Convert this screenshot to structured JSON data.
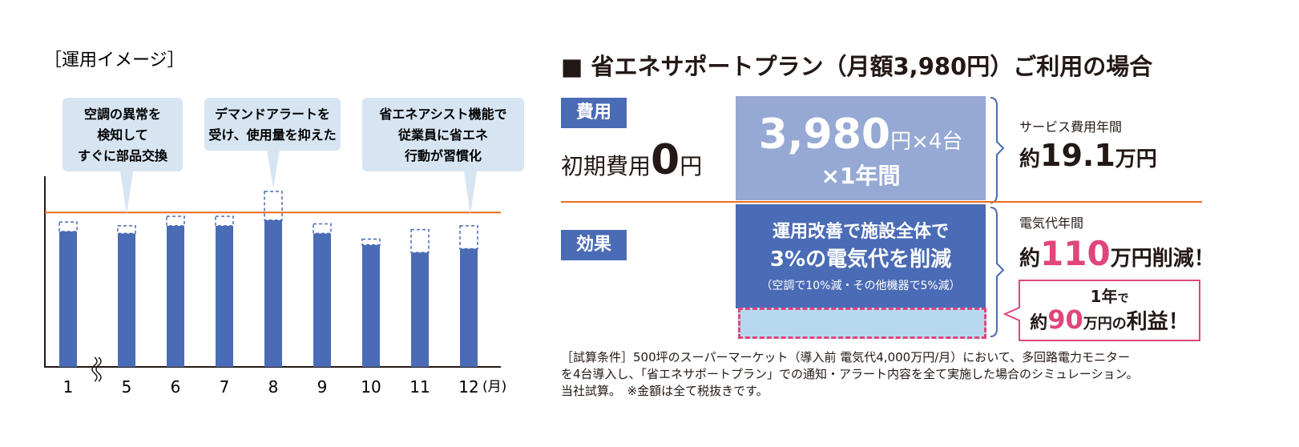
{
  "chart_data": {
    "type": "bar",
    "title": "［運用イメージ］",
    "categories": [
      "1",
      "5",
      "6",
      "7",
      "8",
      "9",
      "10",
      "11",
      "12"
    ],
    "x_unit": "(月)",
    "series": [
      {
        "color": "#4a6bb5",
        "values": [
          71,
          70,
          74,
          74,
          77,
          70,
          64,
          60,
          62
        ]
      },
      {
        "color": "#4a6bb5",
        "style": "dashed",
        "values": [
          5,
          4,
          5,
          5,
          15,
          5,
          3,
          12,
          12
        ]
      }
    ],
    "reference_line": {
      "value": 81,
      "color": "#ec6c1f"
    },
    "ylim": [
      0,
      100
    ],
    "annotations": [
      {
        "lines": [
          "空調の異常を",
          "検知して",
          "すぐに部品交換"
        ]
      },
      {
        "lines": [
          "デマンドアラートを",
          "受け、使用量を抑えた"
        ]
      },
      {
        "lines": [
          "省エネアシスト機能で",
          "従業員に省エネ",
          "行動が習慣化"
        ]
      }
    ]
  },
  "plan": {
    "title": "■ 省エネサポートプラン（月額3,980円）ご利用の場合",
    "cost": {
      "tag": "費用",
      "initial": "初期費用",
      "initial_value": "0",
      "initial_unit": "円",
      "box_price": "3,980",
      "box_unit": "円×4台",
      "box_period": "×1年間",
      "annual_label": "サービス費用年間",
      "annual_prefix": "約",
      "annual_value": "19.1",
      "annual_unit": "万円"
    },
    "effect": {
      "tag": "効果",
      "box_line1": "運用改善で施設全体で",
      "box_line2": "3%の電気代を削減",
      "box_note": "（空調で10%減・その他機器で5%減）",
      "annual_label": "電気代年間",
      "annual_prefix": "約",
      "annual_value": "110",
      "annual_unit": "万円削減！",
      "profit_period": "1年",
      "profit_period_suffix": "で",
      "profit_prefix": "約",
      "profit_value": "90",
      "profit_unit": "万円の",
      "profit_label": "利益！"
    },
    "footnote": [
      "［試算条件］500坪のスーパーマーケット（導入前 電気代4,000万円/月）において、多回路電力モニター",
      "を4台導入し、「省エネサポートプラン」での通知・アラート内容を全て実施した場合のシミュレーション。",
      "当社試算。　※金額は全て税抜きです。"
    ]
  }
}
